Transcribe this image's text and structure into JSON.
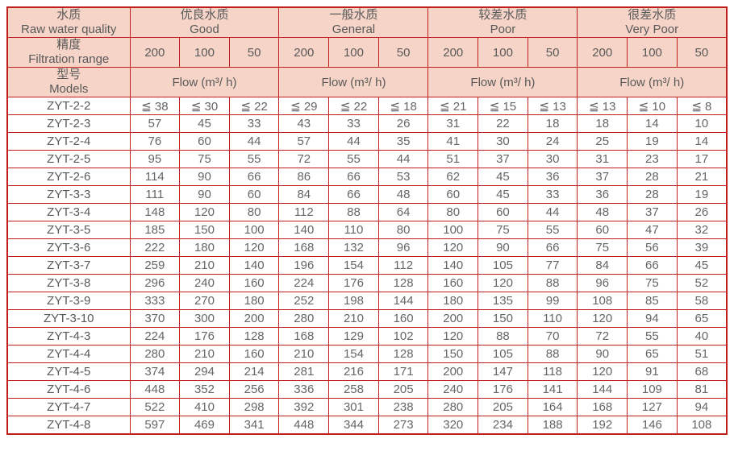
{
  "colors": {
    "border": "#c01d1d",
    "header_bg": "#f6d5c8",
    "header_text": "#595959",
    "cell_text": "#666666"
  },
  "table": {
    "row_headers": [
      {
        "zh": "水质",
        "en": "Raw water quality"
      },
      {
        "zh": "精度",
        "en": "Filtration range"
      },
      {
        "zh": "型号",
        "en": "Models"
      }
    ],
    "quality_groups": [
      {
        "zh": "优良水质",
        "en": "Good"
      },
      {
        "zh": "一般水质",
        "en": "General"
      },
      {
        "zh": "较差水质",
        "en": "Poor"
      },
      {
        "zh": "很差水质",
        "en": "Very Poor"
      }
    ],
    "filtration_values": [
      "200",
      "100",
      "50"
    ],
    "flow_label": "Flow (m³/ h)",
    "rows": [
      {
        "model": "ZYT-2-2",
        "values": [
          "≦ 38",
          "≦ 30",
          "≦ 22",
          "≦ 29",
          "≦ 22",
          "≦ 18",
          "≦ 21",
          "≦ 15",
          "≦ 13",
          "≦ 13",
          "≦ 10",
          "≦ 8"
        ]
      },
      {
        "model": "ZYT-2-3",
        "values": [
          "57",
          "45",
          "33",
          "43",
          "33",
          "26",
          "31",
          "22",
          "18",
          "18",
          "14",
          "10"
        ]
      },
      {
        "model": "ZYT-2-4",
        "values": [
          "76",
          "60",
          "44",
          "57",
          "44",
          "35",
          "41",
          "30",
          "24",
          "25",
          "19",
          "14"
        ]
      },
      {
        "model": "ZYT-2-5",
        "values": [
          "95",
          "75",
          "55",
          "72",
          "55",
          "44",
          "51",
          "37",
          "30",
          "31",
          "23",
          "17"
        ]
      },
      {
        "model": "ZYT-2-6",
        "values": [
          "114",
          "90",
          "66",
          "86",
          "66",
          "53",
          "62",
          "45",
          "36",
          "37",
          "28",
          "21"
        ]
      },
      {
        "model": "ZYT-3-3",
        "values": [
          "111",
          "90",
          "60",
          "84",
          "66",
          "48",
          "60",
          "45",
          "33",
          "36",
          "28",
          "19"
        ]
      },
      {
        "model": "ZYT-3-4",
        "values": [
          "148",
          "120",
          "80",
          "112",
          "88",
          "64",
          "80",
          "60",
          "44",
          "48",
          "37",
          "26"
        ]
      },
      {
        "model": "ZYT-3-5",
        "values": [
          "185",
          "150",
          "100",
          "140",
          "110",
          "80",
          "100",
          "75",
          "55",
          "60",
          "47",
          "32"
        ]
      },
      {
        "model": "ZYT-3-6",
        "values": [
          "222",
          "180",
          "120",
          "168",
          "132",
          "96",
          "120",
          "90",
          "66",
          "75",
          "56",
          "39"
        ]
      },
      {
        "model": "ZYT-3-7",
        "values": [
          "259",
          "210",
          "140",
          "196",
          "154",
          "112",
          "140",
          "105",
          "77",
          "84",
          "66",
          "45"
        ]
      },
      {
        "model": "ZYT-3-8",
        "values": [
          "296",
          "240",
          "160",
          "224",
          "176",
          "128",
          "160",
          "120",
          "88",
          "96",
          "75",
          "52"
        ]
      },
      {
        "model": "ZYT-3-9",
        "values": [
          "333",
          "270",
          "180",
          "252",
          "198",
          "144",
          "180",
          "135",
          "99",
          "108",
          "85",
          "58"
        ]
      },
      {
        "model": "ZYT-3-10",
        "values": [
          "370",
          "300",
          "200",
          "280",
          "210",
          "160",
          "200",
          "150",
          "110",
          "120",
          "94",
          "65"
        ]
      },
      {
        "model": "ZYT-4-3",
        "values": [
          "224",
          "176",
          "128",
          "168",
          "129",
          "102",
          "120",
          "88",
          "70",
          "72",
          "55",
          "40"
        ]
      },
      {
        "model": "ZYT-4-4",
        "values": [
          "280",
          "210",
          "160",
          "210",
          "154",
          "128",
          "150",
          "105",
          "88",
          "90",
          "65",
          "51"
        ]
      },
      {
        "model": "ZYT-4-5",
        "values": [
          "374",
          "294",
          "214",
          "281",
          "216",
          "171",
          "200",
          "147",
          "118",
          "120",
          "91",
          "68"
        ]
      },
      {
        "model": "ZYT-4-6",
        "values": [
          "448",
          "352",
          "256",
          "336",
          "258",
          "205",
          "240",
          "176",
          "141",
          "144",
          "109",
          "81"
        ]
      },
      {
        "model": "ZYT-4-7",
        "values": [
          "522",
          "410",
          "298",
          "392",
          "301",
          "238",
          "280",
          "205",
          "164",
          "168",
          "127",
          "94"
        ]
      },
      {
        "model": "ZYT-4-8",
        "values": [
          "597",
          "469",
          "341",
          "448",
          "344",
          "273",
          "320",
          "234",
          "188",
          "192",
          "146",
          "108"
        ]
      }
    ]
  }
}
